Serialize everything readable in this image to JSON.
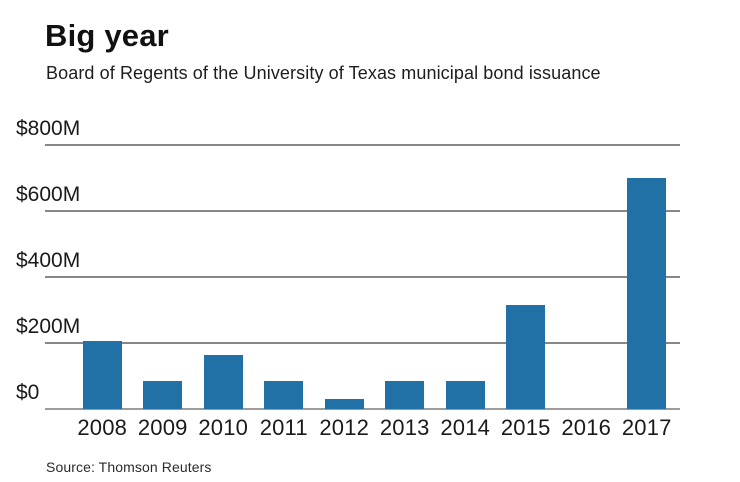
{
  "chart_data": {
    "type": "bar",
    "title": "Big year",
    "subtitle": "Board of Regents of the University of Texas municipal bond issuance",
    "source": "Source: Thomson Reuters",
    "categories": [
      "2008",
      "2009",
      "2010",
      "2011",
      "2012",
      "2013",
      "2014",
      "2015",
      "2016",
      "2017"
    ],
    "values": [
      205,
      85,
      165,
      85,
      30,
      85,
      85,
      315,
      0,
      700
    ],
    "unit": "USD millions",
    "xlabel": "",
    "ylabel": "",
    "ylim": [
      0,
      800
    ],
    "y_ticks": [
      {
        "label": "$0",
        "value": 0
      },
      {
        "label": "$200M",
        "value": 200
      },
      {
        "label": "$400M",
        "value": 400
      },
      {
        "label": "$600M",
        "value": 600
      },
      {
        "label": "$800M",
        "value": 800
      }
    ],
    "grid": "horizontal",
    "legend": "none",
    "colors": {
      "bar": "#2171a7",
      "gridline": "#878787",
      "baseline": "#9c9c9c",
      "title": "#111111",
      "text": "#1a1a1a",
      "source": "#2b2b2b",
      "background": "#ffffff"
    }
  }
}
